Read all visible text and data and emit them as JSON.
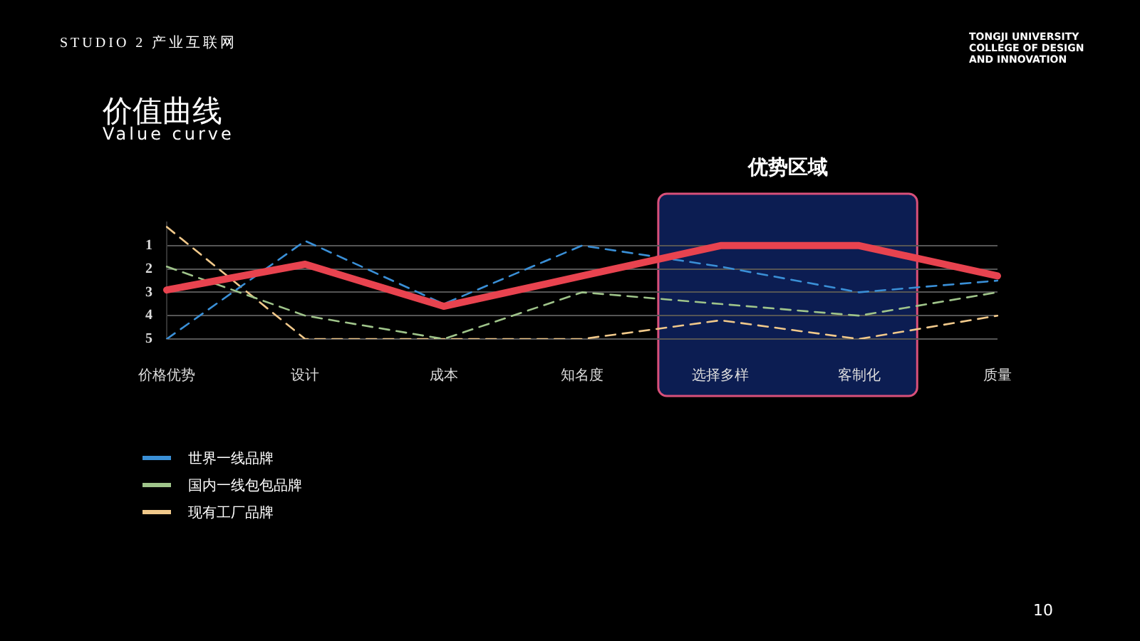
{
  "chart_data": {
    "type": "line",
    "title": "价值曲线",
    "subtitle": "Value curve",
    "categories": [
      "价格优势",
      "设计",
      "成本",
      "知名度",
      "选择多样",
      "客制化",
      "质量"
    ],
    "series": [
      {
        "color": "#e8434f",
        "line_style": "solid",
        "values": [
          2.9,
          1.8,
          3.6,
          2.3,
          1,
          1,
          2.3
        ]
      },
      {
        "name": "世界一线品牌",
        "color": "#3a8fd6",
        "line_style": "dashed",
        "values": [
          5,
          0.8,
          3.5,
          1,
          1.9,
          3,
          2.5
        ]
      },
      {
        "name": "国内一线包包品牌",
        "color": "#9fc48a",
        "line_style": "dashed",
        "values": [
          1.9,
          4,
          5,
          3,
          3.5,
          4,
          3
        ]
      },
      {
        "name": "现有工厂品牌",
        "color": "#f0c88a",
        "line_style": "dashed",
        "values": [
          0.2,
          5,
          5,
          5,
          4.2,
          5,
          4
        ]
      }
    ],
    "ylim": [
      5,
      0
    ],
    "yticks": [
      1,
      2,
      3,
      4,
      5
    ],
    "grid": "y",
    "legend": "bottom left",
    "marker": "none",
    "bands": [
      {
        "axis": "x",
        "from": "选择多样",
        "to": "客制化",
        "label": "优势区域",
        "color": "#0c1d52"
      }
    ],
    "annotations": [
      "STUDIO 2 产业互联网",
      "TONGJI UNIVERSITY COLLEGE OF DESIGN AND INNOVATION",
      "10"
    ]
  }
}
